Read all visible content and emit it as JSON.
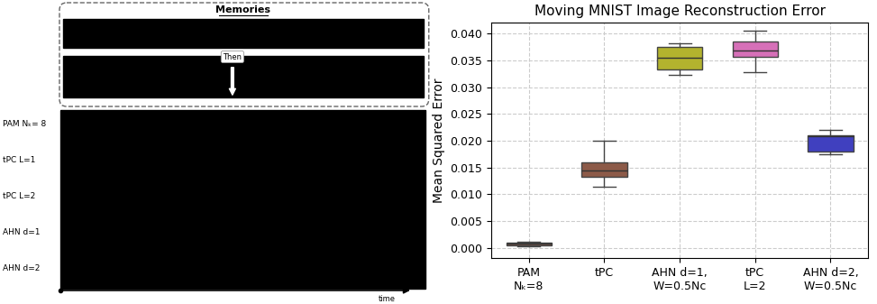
{
  "chart_data": {
    "type": "box",
    "title": "Moving MNIST Image Reconstruction Error",
    "y_label": "Mean Squared Error",
    "categories": [
      "PAM\nNₖ=8",
      "tPC",
      "AHN d=1,\nW=0.5Nc",
      "tPC\nL=2",
      "AHN d=2,\nW=0.5Nc"
    ],
    "stats": [
      {
        "min": 0.0003,
        "q1": 0.0005,
        "median": 0.0007,
        "q3": 0.0009,
        "max": 0.0011
      },
      {
        "min": 0.0114,
        "q1": 0.0133,
        "median": 0.0145,
        "q3": 0.016,
        "max": 0.02
      },
      {
        "min": 0.0323,
        "q1": 0.0333,
        "median": 0.0355,
        "q3": 0.0375,
        "max": 0.0382
      },
      {
        "min": 0.0328,
        "q1": 0.0357,
        "median": 0.0368,
        "q3": 0.0385,
        "max": 0.0405
      },
      {
        "min": 0.0174,
        "q1": 0.018,
        "median": 0.0208,
        "q3": 0.021,
        "max": 0.022
      }
    ],
    "colors": [
      "#7a5548",
      "#8c5a48",
      "#b3b32e",
      "#d670b8",
      "#4040bf"
    ],
    "ylim": [
      -0.002,
      0.042
    ],
    "yticks": [
      {
        "value": 0,
        "label": "0.000"
      },
      {
        "value": 0.005,
        "label": "0.005"
      },
      {
        "value": 0.01,
        "label": "0.010"
      },
      {
        "value": 0.015,
        "label": "0.015"
      },
      {
        "value": 0.02,
        "label": "0.020"
      },
      {
        "value": 0.025,
        "label": "0.025"
      },
      {
        "value": 0.03,
        "label": "0.030"
      },
      {
        "value": 0.035,
        "label": "0.035"
      },
      {
        "value": 0.04,
        "label": "0.040"
      }
    ],
    "grid": true
  },
  "panel": {
    "title": "Memories",
    "arrow_label": "Then",
    "rows": [
      "PAM Nₖ= 8",
      "tPC L=1",
      "tPC L=2",
      "AHN d=1",
      "AHN d=2"
    ],
    "time_label": "time"
  }
}
